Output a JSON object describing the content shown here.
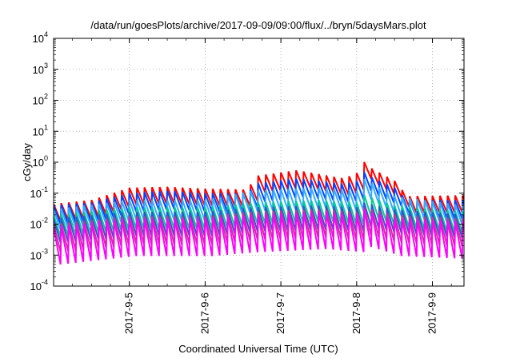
{
  "chart_data": {
    "type": "line",
    "title": "/data/run/goesPlots/archive/2017-09-09/09:00/flux/../bryn/5daysMars.plot",
    "xlabel": "Coordinated Universal Time (UTC)",
    "ylabel": "cGy/day",
    "y_scale": "log",
    "ylim": [
      0.0001,
      10000
    ],
    "y_ticks": [
      {
        "base": "10",
        "exp": "-4"
      },
      {
        "base": "10",
        "exp": "-3"
      },
      {
        "base": "10",
        "exp": "-2"
      },
      {
        "base": "10",
        "exp": "-1"
      },
      {
        "base": "10",
        "exp": "0"
      },
      {
        "base": "10",
        "exp": "1"
      },
      {
        "base": "10",
        "exp": "2"
      },
      {
        "base": "10",
        "exp": "3"
      },
      {
        "base": "10",
        "exp": "4"
      }
    ],
    "xlim": [
      "2017-09-04 00:00",
      "2017-09-09 10:00"
    ],
    "x_ticks": [
      {
        "label": "2017-9-5",
        "value": "2017-09-05 00:00"
      },
      {
        "label": "2017-9-6",
        "value": "2017-09-06 00:00"
      },
      {
        "label": "2017-9-7",
        "value": "2017-09-07 00:00"
      },
      {
        "label": "2017-9-8",
        "value": "2017-09-08 00:00"
      },
      {
        "label": "2017-9-9",
        "value": "2017-09-09 00:00"
      }
    ],
    "grid": true,
    "cycle_hours": 2.4,
    "series": [
      {
        "color": "#ff0000",
        "peaks": [
          [
            "2017-09-04 00:00",
            0.045
          ],
          [
            "2017-09-04 12:00",
            0.06
          ],
          [
            "2017-09-05 00:00",
            0.15
          ],
          [
            "2017-09-05 12:00",
            0.16
          ],
          [
            "2017-09-06 00:00",
            0.14
          ],
          [
            "2017-09-06 14:00",
            0.13
          ],
          [
            "2017-09-06 15:00",
            0.35
          ],
          [
            "2017-09-07 05:00",
            0.55
          ],
          [
            "2017-09-07 20:00",
            0.3
          ],
          [
            "2017-09-08 00:00",
            0.45
          ],
          [
            "2017-09-08 01:00",
            1.8
          ],
          [
            "2017-09-08 03:00",
            0.8
          ],
          [
            "2017-09-08 12:00",
            0.25
          ],
          [
            "2017-09-08 16:00",
            0.08
          ],
          [
            "2017-09-09 10:00",
            0.085
          ]
        ],
        "dip_factor": 3.5
      },
      {
        "color": "#0044ff",
        "peaks": [
          [
            "2017-09-04 00:00",
            0.04
          ],
          [
            "2017-09-04 12:00",
            0.05
          ],
          [
            "2017-09-05 00:00",
            0.1
          ],
          [
            "2017-09-05 12:00",
            0.12
          ],
          [
            "2017-09-06 00:00",
            0.1
          ],
          [
            "2017-09-06 14:00",
            0.1
          ],
          [
            "2017-09-06 15:00",
            0.2
          ],
          [
            "2017-09-07 05:00",
            0.3
          ],
          [
            "2017-09-07 20:00",
            0.2
          ],
          [
            "2017-09-08 00:00",
            0.25
          ],
          [
            "2017-09-08 01:00",
            0.7
          ],
          [
            "2017-09-08 03:00",
            0.4
          ],
          [
            "2017-09-08 12:00",
            0.15
          ],
          [
            "2017-09-08 16:00",
            0.06
          ],
          [
            "2017-09-09 10:00",
            0.06
          ]
        ],
        "dip_factor": 4
      },
      {
        "color": "#33aaff",
        "peaks": [
          [
            "2017-09-04 00:00",
            0.03
          ],
          [
            "2017-09-05 00:00",
            0.06
          ],
          [
            "2017-09-06 00:00",
            0.06
          ],
          [
            "2017-09-06 15:00",
            0.12
          ],
          [
            "2017-09-07 12:00",
            0.15
          ],
          [
            "2017-09-08 00:00",
            0.12
          ],
          [
            "2017-09-08 02:00",
            0.3
          ],
          [
            "2017-09-08 12:00",
            0.08
          ],
          [
            "2017-09-09 10:00",
            0.04
          ]
        ],
        "dip_factor": 4.5
      },
      {
        "color": "#00cc99",
        "peaks": [
          [
            "2017-09-04 00:00",
            0.02
          ],
          [
            "2017-09-05 00:00",
            0.035
          ],
          [
            "2017-09-06 00:00",
            0.035
          ],
          [
            "2017-09-06 15:00",
            0.05
          ],
          [
            "2017-09-07 12:00",
            0.06
          ],
          [
            "2017-09-08 00:00",
            0.05
          ],
          [
            "2017-09-08 02:00",
            0.09
          ],
          [
            "2017-09-08 12:00",
            0.04
          ],
          [
            "2017-09-09 10:00",
            0.025
          ]
        ],
        "dip_factor": 5
      },
      {
        "color": "#3355cc",
        "peaks": [
          [
            "2017-09-04 00:00",
            0.015
          ],
          [
            "2017-09-05 00:00",
            0.025
          ],
          [
            "2017-09-06 00:00",
            0.025
          ],
          [
            "2017-09-06 15:00",
            0.035
          ],
          [
            "2017-09-07 12:00",
            0.04
          ],
          [
            "2017-09-08 00:00",
            0.035
          ],
          [
            "2017-09-08 02:00",
            0.05
          ],
          [
            "2017-09-08 12:00",
            0.03
          ],
          [
            "2017-09-09 10:00",
            0.02
          ]
        ],
        "dip_factor": 6
      },
      {
        "color": "#cc3399",
        "peaks": [
          [
            "2017-09-04 00:00",
            0.01
          ],
          [
            "2017-09-05 00:00",
            0.018
          ],
          [
            "2017-09-06 00:00",
            0.018
          ],
          [
            "2017-09-06 15:00",
            0.025
          ],
          [
            "2017-09-07 12:00",
            0.03
          ],
          [
            "2017-09-08 00:00",
            0.025
          ],
          [
            "2017-09-08 02:00",
            0.035
          ],
          [
            "2017-09-08 12:00",
            0.02
          ],
          [
            "2017-09-09 10:00",
            0.015
          ]
        ],
        "dip_factor": 8
      },
      {
        "color": "#ff00ff",
        "peaks": [
          [
            "2017-09-04 00:00",
            0.008
          ],
          [
            "2017-09-05 00:00",
            0.015
          ],
          [
            "2017-09-06 00:00",
            0.015
          ],
          [
            "2017-09-06 15:00",
            0.02
          ],
          [
            "2017-09-07 12:00",
            0.025
          ],
          [
            "2017-09-08 00:00",
            0.02
          ],
          [
            "2017-09-08 02:00",
            0.03
          ],
          [
            "2017-09-08 12:00",
            0.015
          ],
          [
            "2017-09-09 10:00",
            0.012
          ]
        ],
        "dip_factor": 16
      }
    ]
  }
}
